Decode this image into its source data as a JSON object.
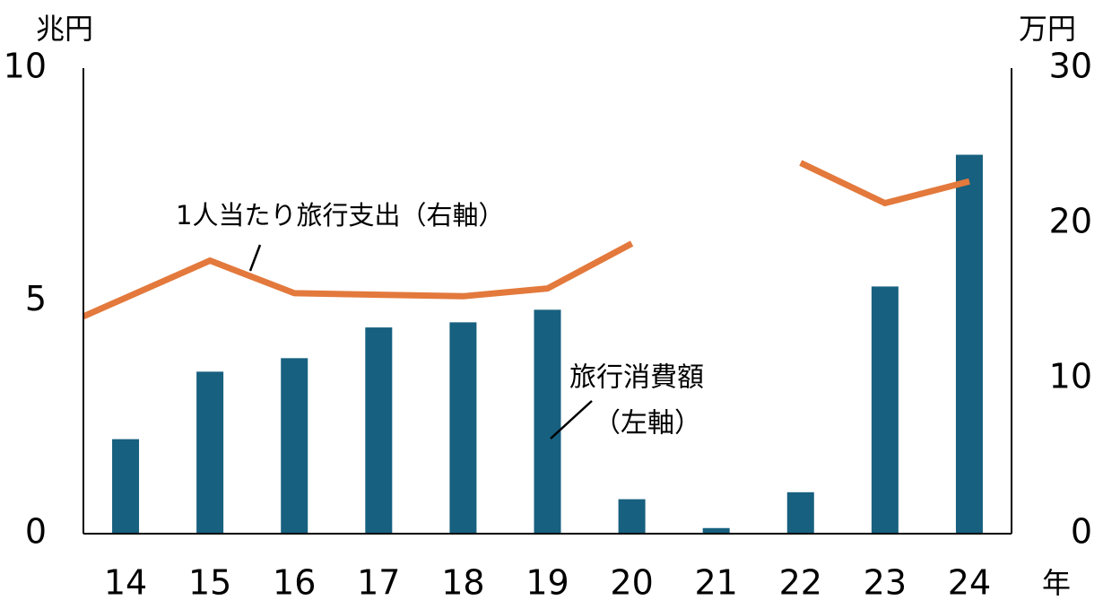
{
  "chart_data": {
    "type": "bar",
    "categories": [
      "14",
      "15",
      "16",
      "17",
      "18",
      "19",
      "20",
      "21",
      "22",
      "23",
      "24"
    ],
    "x_unit": "年",
    "series": [
      {
        "name": "旅行消費額",
        "name_suffix": "（左軸）",
        "type": "bar",
        "axis": "left",
        "color": "#17607f",
        "values": [
          2.03,
          3.48,
          3.77,
          4.43,
          4.54,
          4.81,
          0.74,
          0.12,
          0.89,
          5.31,
          8.14
        ]
      },
      {
        "name": "1人当たり旅行支出（右軸）",
        "type": "line",
        "axis": "right",
        "color": "#e3793c",
        "values": [
          15.2,
          17.6,
          15.5,
          15.4,
          15.3,
          15.8,
          18.7,
          null,
          23.9,
          21.3,
          22.7
        ]
      }
    ],
    "y_left": {
      "unit": "兆円",
      "ylim": [
        0,
        10
      ],
      "ticks": [
        0,
        5,
        10
      ]
    },
    "y_right": {
      "unit": "万円",
      "ylim": [
        0,
        30
      ],
      "ticks": [
        0,
        10,
        20,
        30
      ]
    },
    "grid": false,
    "legend": "inline-annotations"
  }
}
